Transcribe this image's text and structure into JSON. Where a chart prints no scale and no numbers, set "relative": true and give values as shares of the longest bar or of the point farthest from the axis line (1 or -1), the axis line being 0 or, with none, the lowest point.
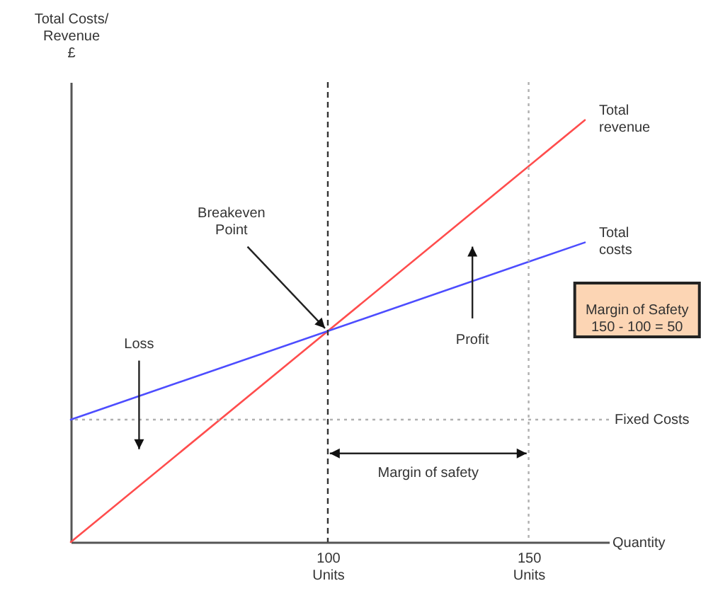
{
  "chart_data": {
    "type": "line",
    "relative": true,
    "ylabel": "Total Costs/\nRevenue\n£",
    "xlabel": "Quantity",
    "xlim": [
      36,
      170
    ],
    "xticks": [
      {
        "value": 100,
        "label": "100\nUnits"
      },
      {
        "value": 150,
        "label": "150\nUnits"
      }
    ],
    "tick_labels": "x",
    "line_style": "solid",
    "x": [
      36,
      164
    ],
    "series": [
      {
        "name": "Total\nrevenue",
        "color": "#ff4d4d",
        "values": [
          0,
          1
        ]
      },
      {
        "name": "Total\ncosts",
        "color": "#4d4dff",
        "values": [
          0.29,
          0.71
        ]
      }
    ],
    "ref_lines": [
      {
        "axis": "y",
        "value": 0.29,
        "label": "Fixed Costs",
        "color": "#b0b0b0",
        "line_style": "dotted"
      },
      {
        "axis": "x",
        "value": 100,
        "label": null,
        "color": "#333333",
        "line_style": "dashed"
      },
      {
        "axis": "x",
        "value": 150,
        "label": null,
        "color": "#b0b0b0",
        "line_style": "dotted"
      }
    ],
    "annotations": [
      {
        "text": "Breakeven\nPoint",
        "x": 100,
        "y": 0.5
      },
      "Loss",
      "Profit",
      "Margin of safety",
      "Margin of Safety\n150 - 100 = 50"
    ]
  }
}
